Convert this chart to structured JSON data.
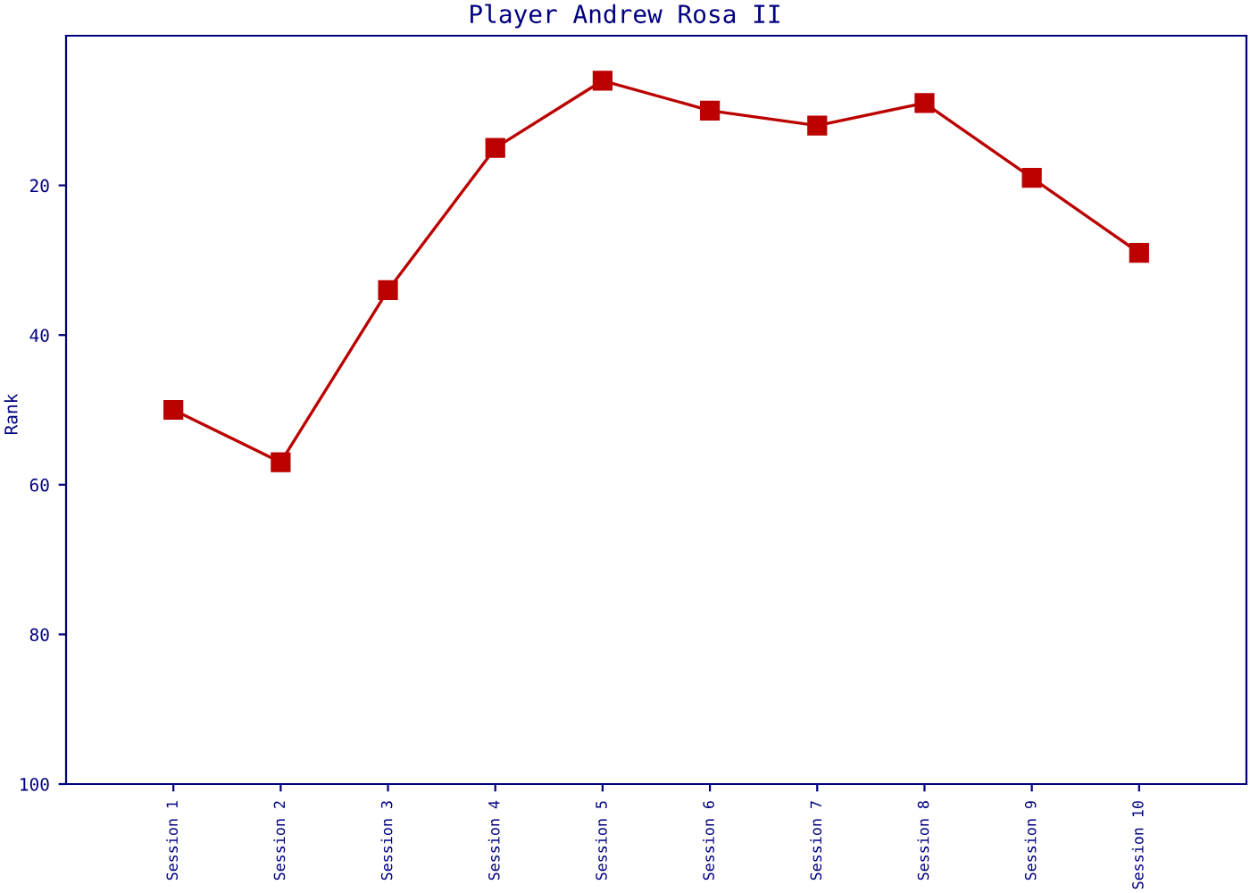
{
  "chart_data": {
    "type": "line",
    "title": "Player Andrew Rosa II",
    "ylabel": "Rank",
    "categories": [
      "Session 1",
      "Session 2",
      "Session 3",
      "Session 4",
      "Session 5",
      "Session 6",
      "Session 7",
      "Session 8",
      "Session 9",
      "Session 10"
    ],
    "series": [
      {
        "color": "#bb0000",
        "values": [
          50,
          57,
          34,
          15,
          6,
          10,
          12,
          9,
          19,
          29
        ]
      }
    ],
    "ylim": [
      100,
      0
    ],
    "yticks": [
      20,
      40,
      60,
      80,
      100
    ],
    "grid": false,
    "legend": false,
    "marker": "square",
    "line_style": "solid"
  }
}
